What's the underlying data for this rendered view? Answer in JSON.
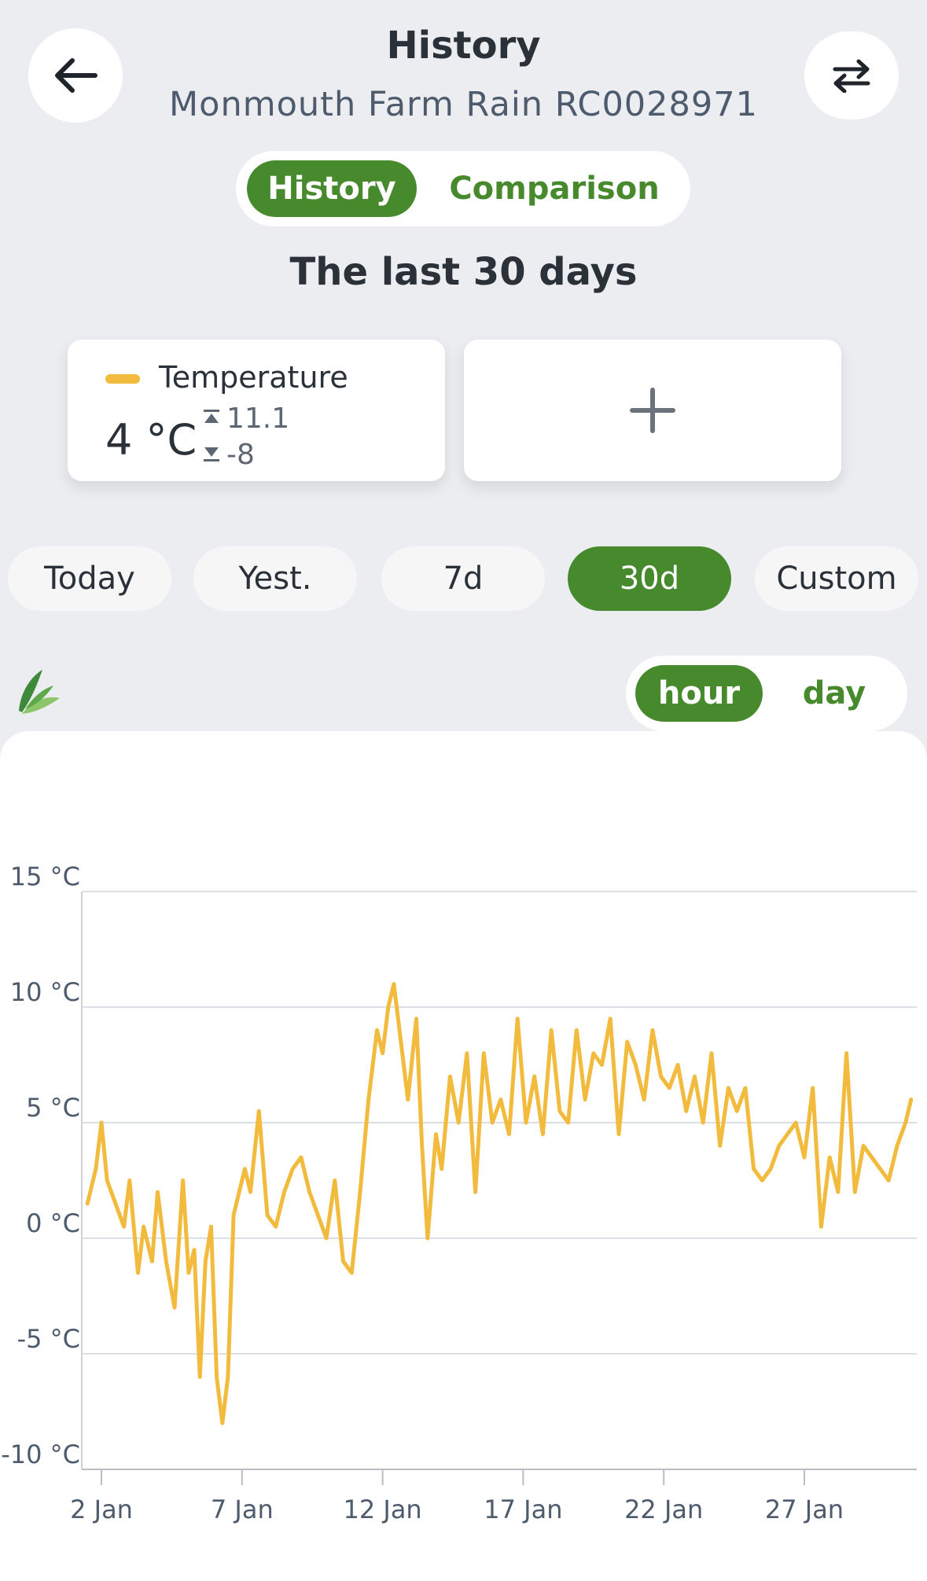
{
  "header": {
    "title": "History",
    "subtitle": "Monmouth Farm Rain RC0028971",
    "back_icon": "arrow-left-icon",
    "swap_icon": "swap-arrows-icon"
  },
  "view_tabs": {
    "active": "History",
    "inactive": "Comparison"
  },
  "period_title": "The last 30 days",
  "sensor_card": {
    "label": "Temperature",
    "value": "4 °C",
    "max": "11.1",
    "min": "-8",
    "color": "#f2bb3d"
  },
  "add_card": {
    "icon": "plus-icon"
  },
  "periods": [
    {
      "label": "Today",
      "active": false
    },
    {
      "label": "Yest.",
      "active": false
    },
    {
      "label": "7d",
      "active": false
    },
    {
      "label": "30d",
      "active": true
    },
    {
      "label": "Custom",
      "active": false
    }
  ],
  "resolution_tabs": {
    "active": "hour",
    "inactive": "day"
  },
  "colors": {
    "accent": "#478a2e",
    "series": "#f2bb3d",
    "background": "#ebedf0"
  },
  "chart_data": {
    "type": "line",
    "ylim": [
      -10,
      15
    ],
    "yticks": [
      15,
      10,
      5,
      0,
      -5,
      -10
    ],
    "ytick_labels": [
      "15 °C",
      "10 °C",
      "5 °C",
      "0 °C",
      "-5 °C",
      "-10 °C"
    ],
    "xlim": [
      1.3,
      31.0
    ],
    "xticks": [
      2,
      7,
      12,
      17,
      22,
      27
    ],
    "xtick_labels": [
      "2 Jan",
      "7 Jan",
      "12 Jan",
      "17 Jan",
      "22 Jan",
      "27 Jan"
    ],
    "grid": true,
    "series": [
      {
        "values_x": [
          1.5,
          1.8,
          2.0,
          2.2,
          2.5,
          2.8,
          3.0,
          3.3,
          3.5,
          3.8,
          4.0,
          4.3,
          4.6,
          4.9,
          5.1,
          5.3,
          5.5,
          5.7,
          5.9,
          6.1,
          6.3,
          6.5,
          6.7,
          6.9,
          7.1,
          7.3,
          7.6,
          7.9,
          8.2,
          8.5,
          8.8,
          9.1,
          9.4,
          9.7,
          10.0,
          10.3,
          10.6,
          10.9,
          11.2,
          11.5,
          11.8,
          12.0,
          12.2,
          12.4,
          12.6,
          12.9,
          13.2,
          13.4,
          13.6,
          13.9,
          14.1,
          14.4,
          14.7,
          15.0,
          15.3,
          15.6,
          15.9,
          16.2,
          16.5,
          16.8,
          17.1,
          17.4,
          17.7,
          18.0,
          18.3,
          18.6,
          18.9,
          19.2,
          19.5,
          19.8,
          20.1,
          20.4,
          20.7,
          21.0,
          21.3,
          21.6,
          21.9,
          22.2,
          22.5,
          22.8,
          23.1,
          23.4,
          23.7,
          24.0,
          24.3,
          24.6,
          24.9,
          25.2,
          25.5,
          25.8,
          26.1,
          26.4,
          26.7,
          27.0,
          27.3,
          27.6,
          27.9,
          28.2,
          28.5,
          28.8,
          29.1,
          29.4,
          29.7,
          30.0,
          30.3,
          30.6,
          30.8
        ],
        "values_y": [
          1.5,
          3.0,
          5.0,
          2.5,
          1.5,
          0.5,
          2.5,
          -1.5,
          0.5,
          -1.0,
          2.0,
          -1.0,
          -3.0,
          2.5,
          -1.5,
          -0.5,
          -6.0,
          -1.0,
          0.5,
          -6.0,
          -8.0,
          -6.0,
          1.0,
          2.0,
          3.0,
          2.0,
          5.5,
          1.0,
          0.5,
          2.0,
          3.0,
          3.5,
          2.0,
          1.0,
          0.0,
          2.5,
          -1.0,
          -1.5,
          2.0,
          6.0,
          9.0,
          8.0,
          10.0,
          11.0,
          9.0,
          6.0,
          9.5,
          4.0,
          0.0,
          4.5,
          3.0,
          7.0,
          5.0,
          8.0,
          2.0,
          8.0,
          5.0,
          6.0,
          4.5,
          9.5,
          5.0,
          7.0,
          4.5,
          9.0,
          5.5,
          5.0,
          9.0,
          6.0,
          8.0,
          7.5,
          9.5,
          4.5,
          8.5,
          7.5,
          6.0,
          9.0,
          7.0,
          6.5,
          7.5,
          5.5,
          7.0,
          5.0,
          8.0,
          4.0,
          6.5,
          5.5,
          6.5,
          3.0,
          2.5,
          3.0,
          4.0,
          4.5,
          5.0,
          3.5,
          6.5,
          0.5,
          3.5,
          2.0,
          8.0,
          2.0,
          4.0,
          3.5,
          3.0,
          2.5,
          4.0,
          5.0,
          6.0
        ]
      }
    ]
  }
}
